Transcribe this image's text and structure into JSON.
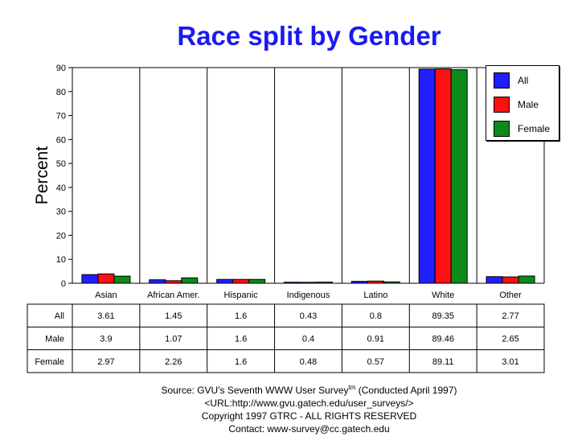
{
  "chart_data": {
    "type": "bar",
    "title": "Race split by Gender",
    "ylabel": "Percent",
    "xlabel": "",
    "ylim": [
      0,
      90
    ],
    "yticks": [
      0,
      10,
      20,
      30,
      40,
      50,
      60,
      70,
      80,
      90
    ],
    "grid": "vertical category separators",
    "legend_position": "top-right",
    "categories": [
      "Asian",
      "African Amer.",
      "Hispanic",
      "Indigenous",
      "Latino",
      "White",
      "Other"
    ],
    "series": [
      {
        "name": "All",
        "color": "#1f1fff",
        "values": [
          3.61,
          1.45,
          1.6,
          0.43,
          0.8,
          89.35,
          2.77
        ]
      },
      {
        "name": "Male",
        "color": "#ff1010",
        "values": [
          3.9,
          1.07,
          1.6,
          0.4,
          0.91,
          89.46,
          2.65
        ]
      },
      {
        "name": "Female",
        "color": "#0c8a1a",
        "values": [
          2.97,
          2.26,
          1.6,
          0.48,
          0.57,
          89.11,
          3.01
        ]
      }
    ],
    "table_row_labels": [
      "All",
      "Male",
      "Female"
    ],
    "table_values": [
      [
        "3.61",
        "1.45",
        "1.6",
        "0.43",
        "0.8",
        "89.35",
        "2.77"
      ],
      [
        "3.9",
        "1.07",
        "1.6",
        "0.4",
        "0.91",
        "89.46",
        "2.65"
      ],
      [
        "2.97",
        "2.26",
        "1.6",
        "0.48",
        "0.57",
        "89.11",
        "3.01"
      ]
    ]
  },
  "footer": {
    "source_prefix": "Source: GVU's Seventh WWW User Survey",
    "source_tm": "tm",
    "source_suffix": " (Conducted April 1997)",
    "url": "<URL:http://www.gvu.gatech.edu/user_surveys/>",
    "copyright": "Copyright 1997 GTRC - ALL RIGHTS RESERVED",
    "contact": "Contact: www-survey@cc.gatech.edu"
  }
}
